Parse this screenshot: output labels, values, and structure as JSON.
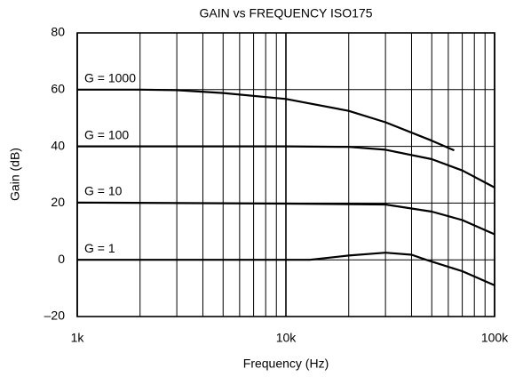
{
  "chart_data": {
    "type": "line",
    "title": "GAIN vs FREQUENCY ISO175",
    "xlabel": "Frequency (Hz)",
    "ylabel": "Gain (dB)",
    "xscale": "log",
    "xlim": [
      1000,
      100000
    ],
    "ylim": [
      -20,
      80
    ],
    "xticks": [
      {
        "value": 1000,
        "label": "1k"
      },
      {
        "value": 10000,
        "label": "10k"
      },
      {
        "value": 100000,
        "label": "100k"
      }
    ],
    "xminorticks": [
      2000,
      3000,
      4000,
      5000,
      6000,
      7000,
      8000,
      9000,
      20000,
      30000,
      40000,
      50000,
      60000,
      70000,
      80000,
      90000
    ],
    "yticks": [
      {
        "value": -20,
        "label": "–20"
      },
      0,
      20,
      40,
      60,
      80
    ],
    "grid": true,
    "series": [
      {
        "name": "G = 1000",
        "color": "#000000",
        "x": [
          1000,
          2000,
          3000,
          5000,
          10000,
          20000,
          30000,
          50000,
          64000
        ],
        "values": [
          60,
          60,
          59.8,
          58.8,
          56.7,
          52.5,
          48.5,
          42,
          38.6
        ]
      },
      {
        "name": "G = 100",
        "color": "#000000",
        "x": [
          1000,
          10000,
          20000,
          30000,
          50000,
          70000,
          100000
        ],
        "values": [
          40,
          40,
          39.8,
          38.8,
          35.5,
          31.5,
          25.5
        ]
      },
      {
        "name": "G = 10",
        "color": "#000000",
        "x": [
          1000,
          10000,
          30000,
          50000,
          70000,
          100000
        ],
        "values": [
          20.2,
          19.8,
          19.5,
          17,
          14,
          9
        ]
      },
      {
        "name": "G = 1",
        "color": "#000000",
        "x": [
          1000,
          13000,
          20000,
          30000,
          40000,
          47000,
          70000,
          100000
        ],
        "values": [
          0,
          0,
          1.5,
          2.5,
          1.8,
          0,
          -4,
          -9
        ]
      }
    ]
  }
}
